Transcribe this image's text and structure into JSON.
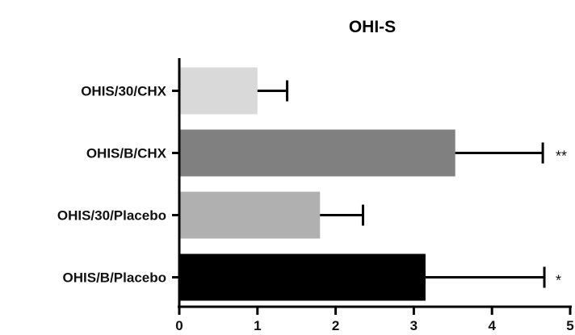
{
  "chart_data": {
    "type": "bar",
    "orientation": "horizontal",
    "title": "OHI-S",
    "xlabel": "",
    "ylabel": "",
    "xlim": [
      0,
      5
    ],
    "x_ticks": [
      "0",
      "1",
      "2",
      "3",
      "4",
      "5"
    ],
    "grid": false,
    "legend": "none",
    "categories": [
      "OHIS/30/CHX",
      "OHIS/B/CHX",
      "OHIS/30/Placebo",
      "OHIS/B/Placebo"
    ],
    "values": [
      1.0,
      3.53,
      1.8,
      3.15
    ],
    "error": [
      0.38,
      1.12,
      0.55,
      1.52
    ],
    "annotations": [
      "",
      "**",
      "",
      "*"
    ],
    "colors": [
      "#d9d9d9",
      "#808080",
      "#b0b0b0",
      "#000000"
    ]
  }
}
